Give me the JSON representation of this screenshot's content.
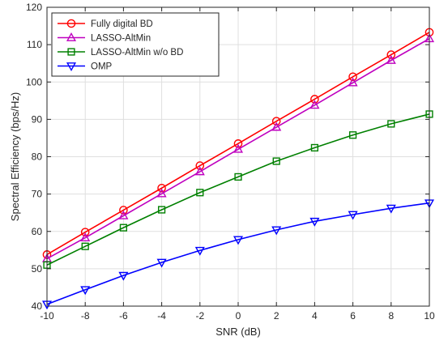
{
  "chart_data": {
    "type": "line",
    "title": "",
    "xlabel": "SNR (dB)",
    "ylabel": "Spectral Efficiency (bps/Hz)",
    "xlim": [
      -10,
      10
    ],
    "ylim": [
      40,
      120
    ],
    "xticks": [
      -10,
      -8,
      -6,
      -4,
      -2,
      0,
      2,
      4,
      6,
      8,
      10
    ],
    "yticks": [
      40,
      50,
      60,
      70,
      80,
      90,
      100,
      110,
      120
    ],
    "grid": true,
    "legend_position": "top-left",
    "x": [
      -10,
      -8,
      -6,
      -4,
      -2,
      0,
      2,
      4,
      6,
      8,
      10
    ],
    "series": [
      {
        "name": "Fully digital BD",
        "color": "#ff0000",
        "marker": "circle",
        "values": [
          53.8,
          59.8,
          65.7,
          71.6,
          77.6,
          83.5,
          89.5,
          95.4,
          101.4,
          107.3,
          113.3
        ]
      },
      {
        "name": "LASSO-AltMin",
        "color": "#bf00bf",
        "marker": "triangle-up",
        "values": [
          52.7,
          58.3,
          64.2,
          70.1,
          76.0,
          82.0,
          87.9,
          93.8,
          99.8,
          105.8,
          111.6
        ]
      },
      {
        "name": "LASSO-AltMin w/o BD",
        "color": "#008000",
        "marker": "square",
        "values": [
          51.0,
          56.0,
          61.0,
          65.8,
          70.4,
          74.6,
          78.8,
          82.4,
          85.8,
          88.8,
          91.4
        ]
      },
      {
        "name": "OMP",
        "color": "#0000ff",
        "marker": "triangle-down",
        "values": [
          40.5,
          44.4,
          48.2,
          51.7,
          54.9,
          57.8,
          60.4,
          62.7,
          64.5,
          66.2,
          67.6
        ]
      }
    ]
  }
}
